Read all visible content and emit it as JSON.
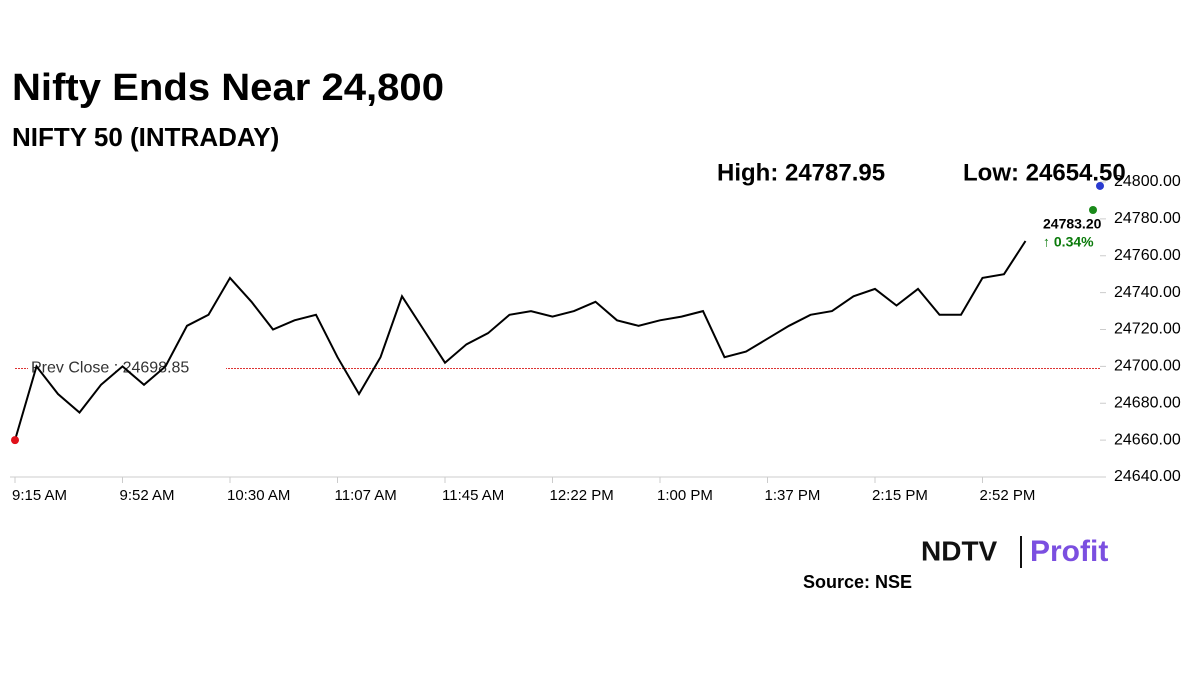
{
  "chart_data": {
    "type": "line",
    "title": "Nifty Ends Near 24,800",
    "subtitle": "NIFTY 50 (INTRADAY)",
    "high_label": "High: 24787.95",
    "low_label": "Low: 24654.50",
    "prev_close": {
      "value": 24698.85,
      "label": "Prev Close : 24698.85"
    },
    "last_price": {
      "value": 24783.2,
      "label": "24783.20"
    },
    "change_label": "↑ 0.34%",
    "source": "Source: NSE",
    "brand": {
      "left": "NDTV",
      "right": "Profit"
    },
    "categories": [
      "9:15 AM",
      null,
      null,
      null,
      null,
      "9:52 AM",
      null,
      null,
      null,
      null,
      "10:30 AM",
      null,
      null,
      null,
      null,
      "11:07 AM",
      null,
      null,
      null,
      null,
      "11:45 AM",
      null,
      null,
      null,
      null,
      "12:22 PM",
      null,
      null,
      null,
      null,
      "1:00 PM",
      null,
      null,
      null,
      null,
      "1:37 PM",
      null,
      null,
      null,
      null,
      "2:15 PM",
      null,
      null,
      null,
      null,
      "2:52 PM",
      null,
      null,
      null,
      null,
      null
    ],
    "series": [
      {
        "name": "NIFTY 50",
        "color": "#000000",
        "values": [
          24660,
          24700,
          24685,
          24675,
          24690,
          24700,
          24690,
          24700,
          24722,
          24728,
          24748,
          24735,
          24720,
          24725,
          24728,
          24705,
          24685,
          24705,
          24738,
          24720,
          24702,
          24712,
          24718,
          24728,
          24730,
          24727,
          24730,
          24735,
          24725,
          24722,
          24725,
          24727,
          24730,
          24705,
          24708,
          24715,
          24722,
          24728,
          24730,
          24738,
          24742,
          24733,
          24742,
          24728,
          24728,
          24748,
          24750,
          24768,
          null,
          null,
          null
        ]
      }
    ],
    "ylim": [
      24640,
      24800
    ],
    "yticks": [
      {
        "value": 24640,
        "label": "24640.00"
      },
      {
        "value": 24660,
        "label": "24660.00"
      },
      {
        "value": 24680,
        "label": "24680.00"
      },
      {
        "value": 24700,
        "label": "24700.00"
      },
      {
        "value": 24720,
        "label": "24720.00"
      },
      {
        "value": 24740,
        "label": "24740.00"
      },
      {
        "value": 24760,
        "label": "24760.00"
      },
      {
        "value": 24780,
        "label": "24780.00"
      },
      {
        "value": 24800,
        "label": "24800.00"
      }
    ]
  }
}
